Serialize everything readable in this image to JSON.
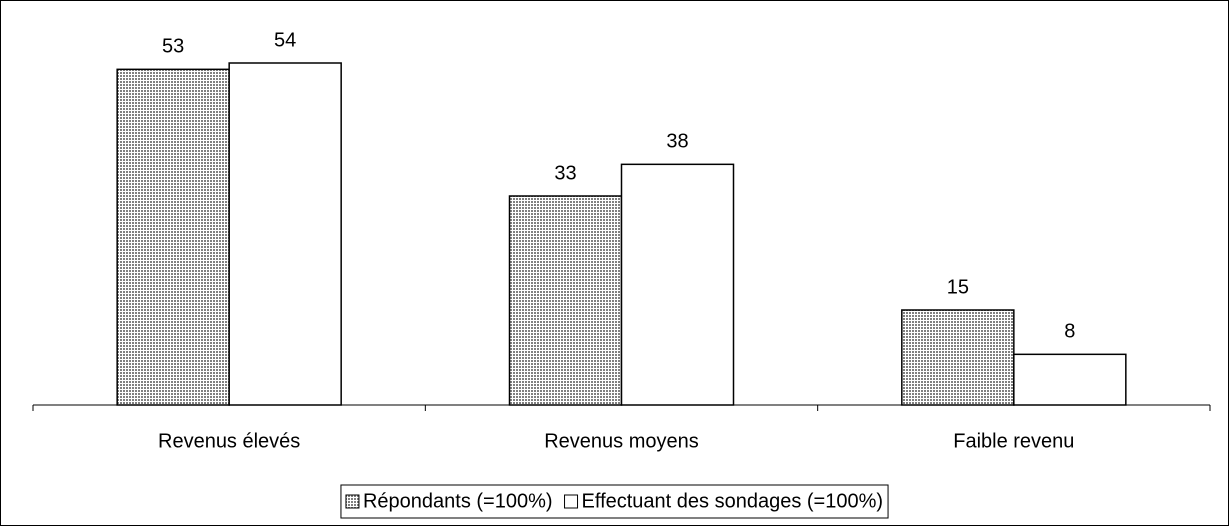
{
  "chart_data": {
    "type": "bar",
    "categories": [
      "Revenus élevés",
      "Revenus moyens",
      "Faible revenu"
    ],
    "series": [
      {
        "name": "Répondants (=100%)",
        "color": "#808080",
        "values": [
          53,
          33,
          15
        ]
      },
      {
        "name": "Effectuant des sondages (=100%)",
        "color": "#ffffff",
        "values": [
          54,
          38,
          8
        ]
      }
    ],
    "ylim": [
      0,
      60
    ]
  }
}
